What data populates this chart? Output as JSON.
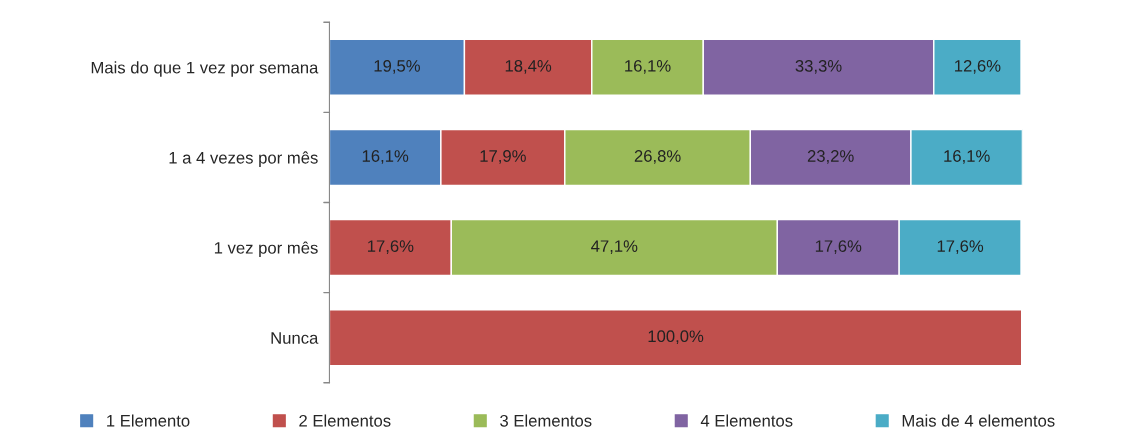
{
  "chart_data": {
    "type": "bar",
    "orientation": "horizontal",
    "stacked": true,
    "legend": "bottom",
    "grid": false,
    "categories": [
      "Mais do que 1 vez por semana",
      "1 a 4 vezes por mês",
      "1 vez por mês",
      "Nunca"
    ],
    "series": [
      {
        "name": "1 Elemento",
        "color": "#4f81bd",
        "values": [
          19.5,
          16.1,
          null,
          null
        ],
        "value_labels": [
          "19,5%",
          "16,1%",
          null,
          null
        ]
      },
      {
        "name": "2 Elementos",
        "color": "#c0504d",
        "values": [
          18.4,
          17.9,
          17.6,
          100.0
        ],
        "value_labels": [
          "18,4%",
          "17,9%",
          "17,6%",
          "100,0%"
        ]
      },
      {
        "name": "3 Elementos",
        "color": "#9bbb59",
        "values": [
          16.1,
          26.8,
          47.1,
          null
        ],
        "value_labels": [
          "16,1%",
          "26,8%",
          "47,1%",
          null
        ]
      },
      {
        "name": "4 Elementos",
        "color": "#8064a2",
        "values": [
          33.3,
          23.2,
          17.6,
          null
        ],
        "value_labels": [
          "33,3%",
          "23,2%",
          "17,6%",
          null
        ]
      },
      {
        "name": "Mais de 4 elementos",
        "color": "#4bacc6",
        "values": [
          12.6,
          16.1,
          17.6,
          null
        ],
        "value_labels": [
          "12,6%",
          "16,1%",
          "17,6%",
          null
        ]
      }
    ]
  }
}
